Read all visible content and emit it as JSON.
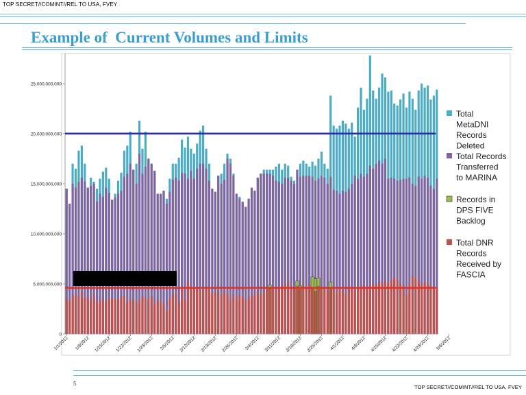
{
  "header": {
    "classification_top": "TOP SECRET//COMINT//REL TO USA, FVEY",
    "title": "Example of  Current Volumes and Limits"
  },
  "footer": {
    "page_number": "5",
    "classification_bottom": "TOP SECRET//COMINT//REL TO USA, FVEY"
  },
  "colors": {
    "accent_rule": "#5bb8df",
    "title": "#3a9fd0",
    "series_deleted": "#4bacc6",
    "series_marina": "#8064a2",
    "series_backlog": "#9bbb59",
    "series_dnr": "#c0504d",
    "limit_blue": "#2b2fa6",
    "limit_red": "#e0302a"
  },
  "chart_data": {
    "type": "bar",
    "ylim": [
      0,
      28000000000
    ],
    "y_ticks": [
      0,
      5000000000,
      10000000000,
      15000000000,
      20000000000,
      25000000000
    ],
    "y_tick_labels": [
      "0",
      "5,000,000,000",
      "10,000,000,000",
      "15,000,000,000",
      "20,000,000,000",
      "25,000,000,000"
    ],
    "x_tick_labels": [
      "1/1/2012",
      "1/8/2012",
      "1/15/2012",
      "1/22/2012",
      "1/29/2012",
      "2/5/2012",
      "2/12/2012",
      "2/19/2012",
      "2/26/2012",
      "3/4/2012",
      "3/11/2012",
      "3/18/2012",
      "3/25/2012",
      "4/1/2012",
      "4/8/2012",
      "4/15/2012",
      "4/22/2012",
      "4/29/2012",
      "5/6/2012"
    ],
    "grid": false,
    "legend_position": "right",
    "reference_lines": [
      {
        "value": 20000000000,
        "color": "#2b2fa6"
      },
      {
        "value": 4600000000,
        "color": "#e0302a"
      }
    ],
    "series": [
      {
        "name": "Total MetaDNI Records Deleted",
        "color": "#4bacc6",
        "values_billions": [
          14.5,
          13.0,
          17.0,
          16.5,
          18.3,
          18.8,
          17.0,
          14.6,
          15.6,
          15.2,
          14.5,
          15.5,
          16.2,
          16.6,
          15.5,
          13.4,
          14.0,
          15.3,
          16.1,
          18.3,
          18.8,
          20.2,
          16.4,
          17.0,
          21.3,
          18.5,
          20.2,
          17.5,
          17.0,
          16.3,
          14.0,
          14.0,
          14.3,
          13.5,
          15.5,
          17.0,
          17.0,
          17.6,
          19.4,
          18.6,
          19.7,
          18.5,
          18.0,
          19.0,
          20.3,
          20.8,
          18.5,
          17.0,
          14.5,
          14.2,
          15.8,
          16.0,
          17.0,
          18.0,
          17.5,
          16.0,
          14.0,
          13.7,
          13.2,
          12.7,
          13.5,
          14.6,
          14.3,
          15.6,
          16.0,
          16.4,
          16.4,
          16.4,
          16.4,
          16.7,
          17.0,
          16.4,
          17.0,
          16.8,
          15.7,
          15.3,
          16.4,
          17.0,
          17.3,
          17.0,
          16.7,
          17.2,
          16.8,
          17.5,
          18.2,
          17.0,
          16.5,
          23.8,
          20.8,
          20.5,
          20.8,
          21.3,
          21.0,
          20.5,
          21.1,
          19.7,
          22.6,
          24.6,
          22.4,
          23.5,
          27.8,
          24.3,
          23.5,
          24.6,
          26.0,
          25.6,
          24.2,
          24.3,
          23.0,
          22.8,
          23.4,
          24.0,
          22.6,
          24.2,
          23.5,
          22.4,
          24.3,
          25.0,
          24.6,
          24.8,
          23.4,
          23.8,
          24.4
        ]
      },
      {
        "name": "Total Records Transferred to MARINA",
        "color": "#8064a2",
        "values_billions": [
          14.5,
          13.0,
          15.0,
          14.6,
          15.2,
          15.6,
          15.2,
          14.6,
          14.8,
          15.0,
          13.2,
          14.0,
          13.7,
          14.6,
          14.1,
          13.4,
          13.6,
          14.0,
          14.3,
          15.7,
          16.0,
          17.0,
          16.4,
          15.0,
          18.0,
          16.0,
          16.7,
          17.5,
          17.0,
          16.3,
          14.0,
          14.0,
          14.3,
          13.0,
          14.2,
          15.4,
          15.6,
          15.3,
          16.1,
          16.0,
          15.5,
          16.3,
          15.5,
          16.5,
          17.0,
          17.0,
          16.5,
          15.3,
          14.5,
          14.2,
          15.8,
          15.0,
          15.4,
          17.5,
          17.0,
          15.8,
          14.0,
          13.5,
          13.2,
          12.7,
          13.5,
          14.6,
          14.3,
          15.6,
          16.0,
          16.0,
          16.0,
          16.0,
          15.8,
          15.3,
          15.2,
          15.0,
          15.6,
          15.6,
          15.3,
          15.0,
          16.4,
          15.7,
          15.8,
          15.8,
          15.8,
          15.7,
          15.3,
          15.5,
          15.8,
          15.6,
          15.0,
          15.7,
          14.4,
          14.3,
          14.0,
          14.3,
          14.2,
          14.5,
          15.0,
          15.8,
          15.5,
          16.0,
          15.7,
          16.0,
          16.8,
          16.5,
          17.0,
          17.3,
          17.0,
          17.5,
          15.5,
          15.6,
          15.5,
          15.3,
          15.4,
          15.5,
          15.5,
          15.6,
          15.0,
          14.8,
          15.7,
          15.5,
          15.8,
          15.6,
          14.8,
          14.5,
          15.5
        ]
      },
      {
        "name": "Records in DPS FIVE Backlog",
        "color": "#9bbb59",
        "values_billions": [
          0,
          0,
          0,
          0,
          0,
          0,
          0,
          0,
          0,
          0,
          0,
          0,
          0,
          0,
          0,
          0,
          0,
          0,
          0,
          0,
          0,
          0,
          0,
          0,
          0,
          0,
          0,
          0,
          0,
          0,
          0,
          0,
          0,
          0,
          0,
          0,
          0,
          0,
          0,
          0,
          0,
          0,
          0,
          0,
          0,
          0,
          0,
          0,
          0,
          0,
          0,
          0,
          0,
          0,
          0,
          0,
          0,
          0,
          0,
          0,
          0,
          0,
          0,
          0,
          0,
          0,
          0,
          4.9,
          0,
          0,
          0,
          0,
          0,
          0,
          0,
          0,
          5.3,
          4.8,
          0,
          0,
          0,
          5.7,
          5.5,
          5.6,
          0,
          0,
          0,
          5.2,
          0,
          0,
          0,
          0,
          0,
          0,
          0,
          0,
          0,
          0,
          0,
          0,
          0,
          0,
          0,
          0,
          0,
          0,
          0,
          0,
          0,
          0,
          0,
          0,
          0,
          0,
          0,
          0,
          0,
          0,
          0,
          0,
          0,
          0,
          0,
          0,
          0,
          0,
          4.9
        ]
      },
      {
        "name": "Total DNR Records Received by FASCIA",
        "color": "#c0504d",
        "values_billions": [
          3.5,
          3.2,
          3.8,
          4.0,
          3.7,
          4.2,
          3.6,
          3.7,
          3.4,
          4.0,
          3.2,
          3.3,
          3.5,
          3.3,
          3.5,
          3.6,
          3.5,
          3.4,
          3.7,
          3.8,
          3.2,
          3.5,
          3.4,
          3.1,
          3.4,
          3.8,
          3.6,
          3.5,
          3.8,
          3.1,
          3.4,
          3.3,
          3.0,
          2.3,
          3.5,
          3.9,
          4.1,
          3.2,
          4.5,
          3.4,
          5.2,
          4.7,
          4.6,
          4.7,
          4.3,
          4.4,
          4.5,
          4.4,
          4.0,
          4.2,
          4.3,
          3.9,
          4.3,
          4.0,
          3.5,
          3.9,
          3.6,
          3.9,
          3.7,
          3.4,
          3.6,
          3.9,
          3.8,
          4.3,
          4.0,
          4.2,
          4.5,
          4.6,
          4.5,
          4.4,
          4.7,
          4.8,
          5.0,
          5.2,
          4.7,
          4.5,
          4.8,
          4.5,
          4.9,
          4.6,
          5.0,
          4.7,
          4.3,
          4.8,
          4.5,
          4.6,
          4.3,
          4.5,
          4.7,
          4.2,
          4.5,
          4.4,
          4.0,
          4.5,
          4.7,
          4.4,
          4.5,
          4.8,
          4.9,
          4.6,
          4.8,
          5.0,
          4.9,
          5.2,
          5.0,
          5.3,
          5.1,
          5.4,
          5.6,
          5.4,
          5.0,
          4.8,
          4.0,
          5.0,
          5.8,
          5.6,
          5.3,
          4.9,
          5.2,
          5.0,
          4.8,
          4.6,
          4.7
        ]
      }
    ]
  }
}
